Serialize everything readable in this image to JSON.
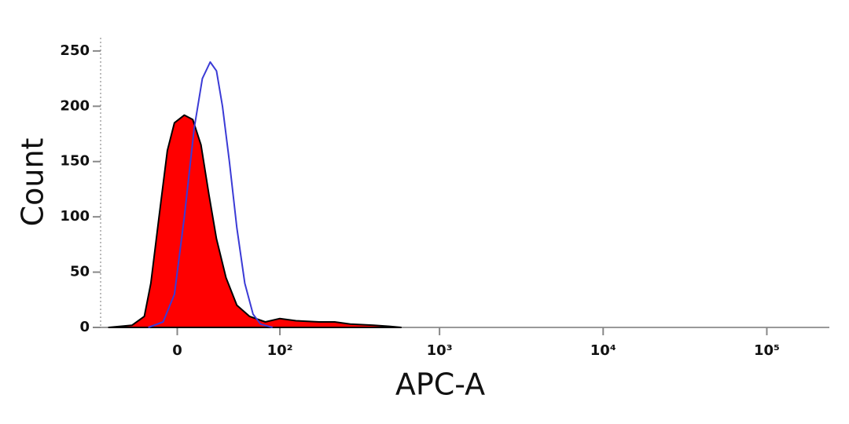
{
  "chart_data": {
    "type": "histogram-overlay",
    "x_label": "APC-A",
    "y_label": "Count",
    "xscale": "biexponential",
    "xlim": [
      -65,
      241000
    ],
    "ylim": [
      0,
      262
    ],
    "xticks": [
      0,
      {
        "value": 100,
        "label": "10²"
      },
      {
        "value": 1000,
        "label": "10³"
      },
      {
        "value": 10000,
        "label": "10⁴"
      },
      {
        "value": 100000,
        "label": "10⁵"
      }
    ],
    "yticks": [
      0,
      50,
      100,
      150,
      200,
      250
    ],
    "series": [
      {
        "color": "#ff0000",
        "outline": "#000000",
        "filled": true,
        "x": [
          -56,
          -34,
          -24,
          -19,
          -13,
          -7,
          -2,
          5,
          11,
          17,
          23,
          29,
          37,
          47,
          60,
          79,
          100,
          128,
          181,
          226,
          283,
          395,
          492,
          580
        ],
        "values": [
          0,
          2,
          10,
          40,
          100,
          160,
          185,
          192,
          188,
          165,
          120,
          80,
          45,
          20,
          10,
          5,
          8,
          6,
          5,
          5,
          3,
          2,
          1,
          0
        ]
      },
      {
        "color": "#3b3bd6",
        "filled": false,
        "x": [
          -21,
          -10,
          -2,
          5,
          12,
          18,
          24,
          29,
          34,
          40,
          47,
          55,
          64,
          73,
          89
        ],
        "values": [
          0,
          5,
          30,
          100,
          180,
          225,
          240,
          232,
          200,
          150,
          90,
          40,
          12,
          3,
          0
        ]
      }
    ]
  }
}
